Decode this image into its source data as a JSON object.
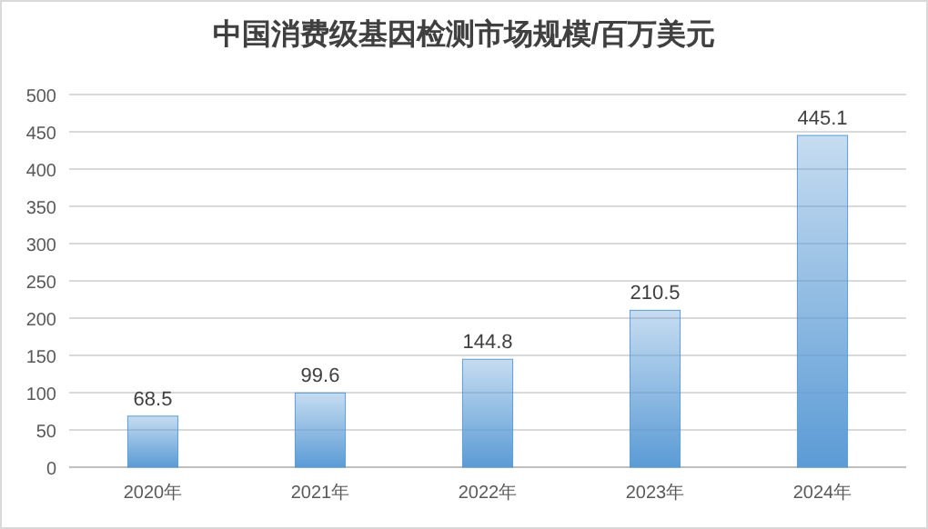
{
  "chart_data": {
    "type": "bar",
    "title": "中国消费级基因检测市场规模/百万美元",
    "categories": [
      "2020年",
      "2021年",
      "2022年",
      "2023年",
      "2024年"
    ],
    "series": [
      {
        "color": "#5b9bd5",
        "values": [
          68.5,
          99.6,
          144.8,
          210.5,
          445.1
        ]
      }
    ],
    "ylim": [
      0,
      500
    ],
    "yticks": [
      0,
      50,
      100,
      150,
      200,
      250,
      300,
      350,
      400,
      450,
      500
    ],
    "grid": "y",
    "data_labels": true
  }
}
